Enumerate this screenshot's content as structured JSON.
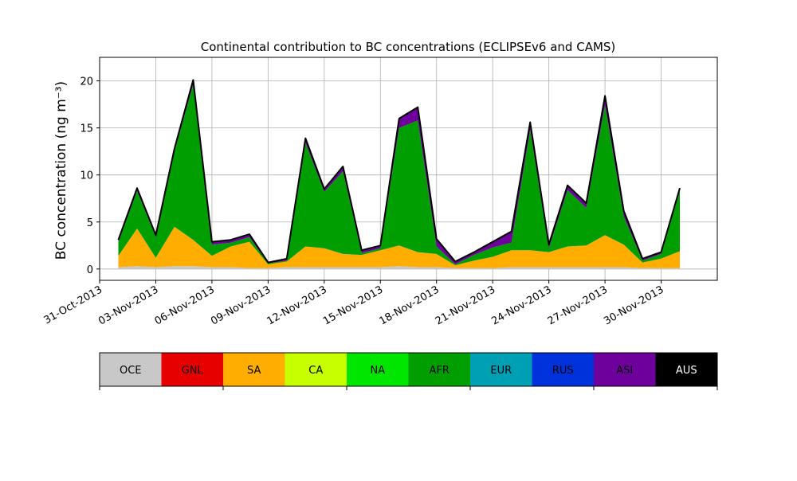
{
  "colors": {
    "OCE": "#c8c8c8",
    "GNL": "#e60000",
    "SA": "#ffad00",
    "CA": "#c8ff00",
    "NA": "#00e600",
    "AFR": "#009e00",
    "EUR": "#00a0b4",
    "RUS": "#0032dc",
    "ASI": "#6e009c",
    "AUS": "#000000"
  },
  "chart_data": {
    "type": "area",
    "stacked": true,
    "title": "Continental contribution to BC concentrations (ECLIPSEv6 and CAMS)",
    "ylabel": "BC concentration (ng m⁻³)",
    "xlabel": "",
    "x_start": "2013-11-01",
    "x_end": "2013-12-01",
    "xlim": [
      "2013-10-31",
      "2013-12-03"
    ],
    "ylim": [
      -1.2,
      22.5
    ],
    "xticks": [
      "31-Oct-2013",
      "03-Nov-2013",
      "06-Nov-2013",
      "09-Nov-2013",
      "12-Nov-2013",
      "15-Nov-2013",
      "18-Nov-2013",
      "21-Nov-2013",
      "24-Nov-2013",
      "27-Nov-2013",
      "30-Nov-2013"
    ],
    "yticks": [
      "0",
      "5",
      "10",
      "15",
      "20"
    ],
    "grid": true,
    "x": [
      "2013-11-01",
      "2013-11-02",
      "2013-11-03",
      "2013-11-04",
      "2013-11-05",
      "2013-11-06",
      "2013-11-07",
      "2013-11-08",
      "2013-11-09",
      "2013-11-10",
      "2013-11-11",
      "2013-11-12",
      "2013-11-13",
      "2013-11-14",
      "2013-11-15",
      "2013-11-16",
      "2013-11-17",
      "2013-11-18",
      "2013-11-19",
      "2013-11-20",
      "2013-11-21",
      "2013-11-22",
      "2013-11-23",
      "2013-11-24",
      "2013-11-25",
      "2013-11-26",
      "2013-11-27",
      "2013-11-28",
      "2013-11-29",
      "2013-11-30",
      "2013-12-01"
    ],
    "series": [
      {
        "name": "OCE",
        "values": [
          0.2,
          0.3,
          0.2,
          0.3,
          0.3,
          0.2,
          0.2,
          0.1,
          0.1,
          0.2,
          0.2,
          0.2,
          0.2,
          0.2,
          0.2,
          0.3,
          0.2,
          0.2,
          0.1,
          0.1,
          0.1,
          0.2,
          0.2,
          0.2,
          0.2,
          0.2,
          0.2,
          0.2,
          0.1,
          0.1,
          0.1
        ]
      },
      {
        "name": "GNL",
        "values": [
          0.0,
          0.0,
          0.0,
          0.0,
          0.0,
          0.0,
          0.0,
          0.0,
          0.0,
          0.0,
          0.0,
          0.0,
          0.0,
          0.0,
          0.0,
          0.0,
          0.0,
          0.0,
          0.0,
          0.0,
          0.0,
          0.0,
          0.0,
          0.0,
          0.0,
          0.0,
          0.0,
          0.0,
          0.0,
          0.0,
          0.0
        ]
      },
      {
        "name": "SA",
        "values": [
          1.2,
          4.0,
          1.0,
          4.2,
          2.8,
          1.2,
          2.2,
          2.8,
          0.4,
          0.6,
          2.2,
          2.0,
          1.4,
          1.3,
          1.8,
          2.2,
          1.6,
          1.4,
          0.3,
          0.8,
          1.2,
          1.8,
          1.8,
          1.6,
          2.2,
          2.3,
          3.4,
          2.4,
          0.6,
          1.0,
          1.8
        ]
      },
      {
        "name": "CA",
        "values": [
          0.0,
          0.0,
          0.0,
          0.0,
          0.0,
          0.0,
          0.0,
          0.0,
          0.0,
          0.0,
          0.0,
          0.0,
          0.0,
          0.0,
          0.0,
          0.0,
          0.0,
          0.0,
          0.0,
          0.0,
          0.0,
          0.0,
          0.0,
          0.0,
          0.0,
          0.0,
          0.0,
          0.0,
          0.0,
          0.0,
          0.0
        ]
      },
      {
        "name": "NA",
        "values": [
          0.0,
          0.0,
          0.0,
          0.0,
          0.0,
          0.0,
          0.0,
          0.0,
          0.0,
          0.0,
          0.0,
          0.0,
          0.0,
          0.0,
          0.0,
          0.0,
          0.0,
          0.0,
          0.0,
          0.0,
          0.0,
          0.0,
          0.0,
          0.0,
          0.0,
          0.0,
          0.0,
          0.0,
          0.0,
          0.0,
          0.0
        ]
      },
      {
        "name": "AFR",
        "values": [
          1.5,
          4.0,
          2.2,
          8.0,
          16.5,
          1.2,
          0.4,
          0.5,
          0.1,
          0.1,
          11.0,
          6.0,
          8.8,
          0.2,
          0.2,
          12.5,
          14.0,
          0.8,
          0.1,
          0.6,
          1.0,
          0.8,
          12.8,
          0.4,
          6.0,
          4.0,
          13.8,
          3.0,
          0.2,
          0.5,
          6.4
        ]
      },
      {
        "name": "EUR",
        "values": [
          0.0,
          0.0,
          0.0,
          0.0,
          0.0,
          0.0,
          0.0,
          0.0,
          0.0,
          0.0,
          0.0,
          0.0,
          0.0,
          0.0,
          0.0,
          0.0,
          0.0,
          0.0,
          0.0,
          0.0,
          0.0,
          0.0,
          0.0,
          0.0,
          0.0,
          0.0,
          0.0,
          0.0,
          0.0,
          0.0,
          0.0
        ]
      },
      {
        "name": "RUS",
        "values": [
          0.0,
          0.0,
          0.0,
          0.0,
          0.0,
          0.0,
          0.0,
          0.0,
          0.0,
          0.0,
          0.0,
          0.0,
          0.0,
          0.0,
          0.0,
          0.0,
          0.0,
          0.0,
          0.0,
          0.0,
          0.0,
          0.0,
          0.0,
          0.0,
          0.0,
          0.0,
          0.0,
          0.0,
          0.0,
          0.0,
          0.0
        ]
      },
      {
        "name": "ASI",
        "values": [
          0.2,
          0.3,
          0.2,
          0.3,
          0.5,
          0.3,
          0.3,
          0.3,
          0.1,
          0.2,
          0.5,
          0.3,
          0.5,
          0.3,
          0.3,
          1.0,
          1.4,
          0.8,
          0.3,
          0.3,
          0.6,
          1.2,
          0.8,
          0.4,
          0.5,
          0.5,
          1.0,
          0.6,
          0.2,
          0.2,
          0.3
        ]
      },
      {
        "name": "AUS",
        "values": [
          0.0,
          0.0,
          0.0,
          0.0,
          0.0,
          0.0,
          0.0,
          0.0,
          0.0,
          0.0,
          0.0,
          0.0,
          0.0,
          0.0,
          0.0,
          0.0,
          0.0,
          0.0,
          0.0,
          0.0,
          0.0,
          0.0,
          0.0,
          0.0,
          0.0,
          0.0,
          0.0,
          0.0,
          0.0,
          0.0,
          0.0
        ]
      }
    ],
    "total": [
      3.1,
      8.6,
      3.6,
      12.8,
      20.1,
      2.9,
      3.1,
      3.7,
      0.7,
      1.1,
      13.9,
      8.5,
      10.9,
      2.0,
      2.5,
      16.0,
      17.2,
      3.2,
      0.8,
      1.8,
      2.9,
      4.0,
      15.6,
      2.6,
      8.9,
      7.0,
      18.4,
      6.2,
      1.1,
      1.8,
      8.6
    ],
    "legend": [
      "OCE",
      "GNL",
      "SA",
      "CA",
      "NA",
      "AFR",
      "EUR",
      "RUS",
      "ASI",
      "AUS"
    ],
    "legend_placement": "bottom colorbar"
  }
}
